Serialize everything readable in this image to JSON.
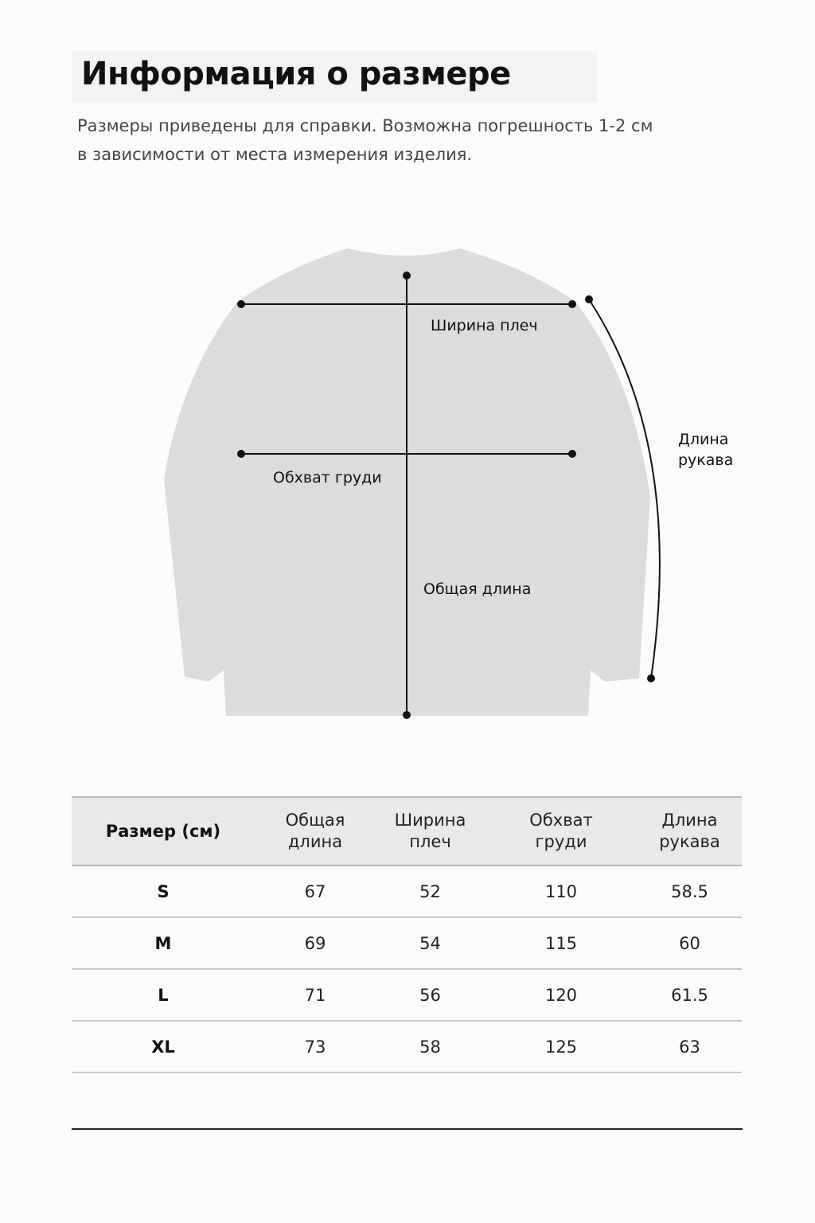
{
  "title": "Информация о размере",
  "subtitle_line1": "Размеры приведены для справки. Возможна погрешность 1-2 см",
  "subtitle_line2": "в зависимости от места измерения изделия.",
  "diagram": {
    "shoulder_label": "Ширина плеч",
    "chest_label": "Обхват груди",
    "length_label": "Общая длина",
    "sleeve_label_line1": "Длина",
    "sleeve_label_line2": "рукава",
    "garment_color": "#dcdcdc"
  },
  "table": {
    "headers": [
      {
        "l1": "Размер (см)",
        "l2": ""
      },
      {
        "l1": "Общая",
        "l2": "длина"
      },
      {
        "l1": "Ширина",
        "l2": "плеч"
      },
      {
        "l1": "Обхват",
        "l2": "груди"
      },
      {
        "l1": "Длина",
        "l2": "рукава"
      }
    ],
    "rows": [
      [
        "S",
        "67",
        "52",
        "110",
        "58.5"
      ],
      [
        "M",
        "69",
        "54",
        "115",
        "60"
      ],
      [
        "L",
        "71",
        "56",
        "120",
        "61.5"
      ],
      [
        "XL",
        "73",
        "58",
        "125",
        "63"
      ]
    ]
  }
}
